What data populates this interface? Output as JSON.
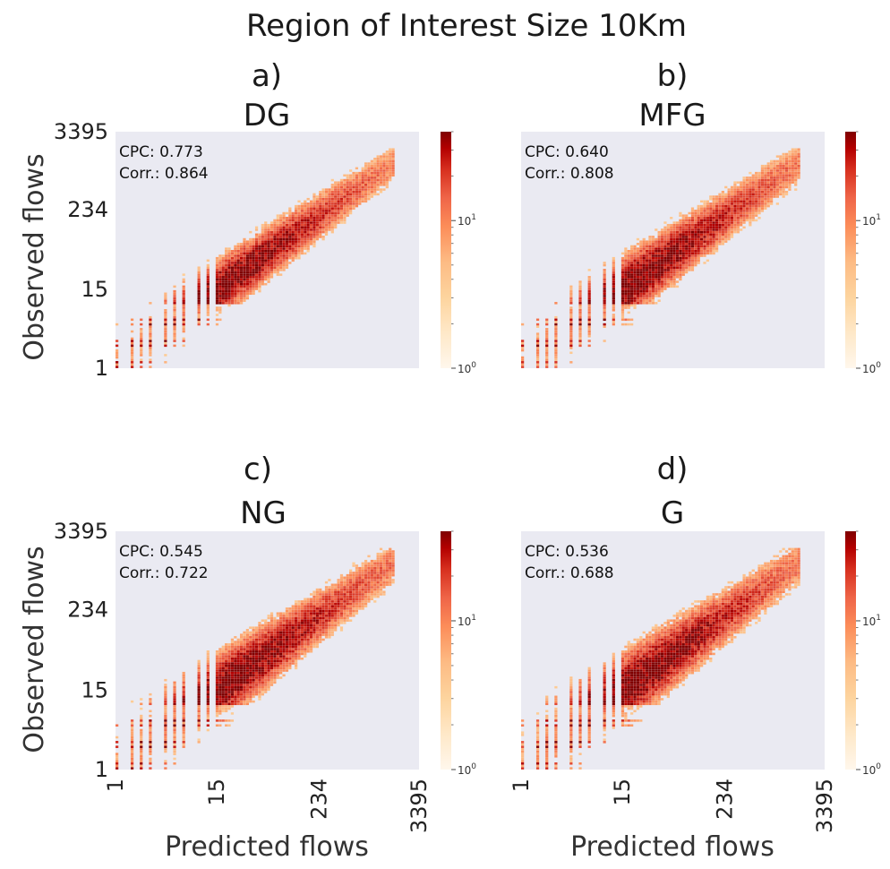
{
  "figure": {
    "title": "Region of Interest Size 10Km"
  },
  "chart_data": [
    {
      "type": "heatmap",
      "panel_label": "a)",
      "title": "DG",
      "xlabel": "",
      "ylabel": "Observed flows",
      "xticks": [],
      "yticks": [
        "1",
        "15",
        "234",
        "3395"
      ],
      "axis_range": [
        1,
        3395
      ],
      "log_scale": true,
      "grid": false,
      "stats": {
        "cpc": "CPC: 0.773",
        "corr": "Corr.: 0.864"
      },
      "colorbar": {
        "colormap": "OrRd",
        "ticks": [
          "10^0",
          "10^1"
        ],
        "range": [
          1,
          40
        ]
      },
      "spread": 0.55
    },
    {
      "type": "heatmap",
      "panel_label": "b)",
      "title": "MFG",
      "xlabel": "",
      "ylabel": "",
      "xticks": [],
      "yticks": [],
      "axis_range": [
        1,
        3395
      ],
      "log_scale": true,
      "grid": false,
      "stats": {
        "cpc": "CPC: 0.640",
        "corr": "Corr.: 0.808"
      },
      "colorbar": {
        "colormap": "OrRd",
        "ticks": [
          "10^0",
          "10^1"
        ],
        "range": [
          1,
          40
        ]
      },
      "spread": 0.8
    },
    {
      "type": "heatmap",
      "panel_label": "c)",
      "title": "NG",
      "xlabel": "Predicted flows",
      "ylabel": "Observed flows",
      "xticks": [
        "1",
        "15",
        "234",
        "3395"
      ],
      "yticks": [
        "1",
        "15",
        "234",
        "3395"
      ],
      "axis_range": [
        1,
        3395
      ],
      "log_scale": true,
      "grid": false,
      "stats": {
        "cpc": "CPC: 0.545",
        "corr": "Corr.: 0.722"
      },
      "colorbar": {
        "colormap": "OrRd",
        "ticks": [
          "10^0",
          "10^1"
        ],
        "range": [
          1,
          40
        ]
      },
      "spread": 1.0
    },
    {
      "type": "heatmap",
      "panel_label": "d)",
      "title": "G",
      "xlabel": "Predicted flows",
      "ylabel": "",
      "xticks": [
        "1",
        "15",
        "234",
        "3395"
      ],
      "yticks": [],
      "axis_range": [
        1,
        3395
      ],
      "log_scale": true,
      "grid": false,
      "stats": {
        "cpc": "CPC: 0.536",
        "corr": "Corr.: 0.688"
      },
      "colorbar": {
        "colormap": "OrRd",
        "ticks": [
          "10^0",
          "10^1"
        ],
        "range": [
          1,
          40
        ]
      },
      "spread": 1.1
    }
  ],
  "colors": {
    "plot_background": "#eaeaf2",
    "cmap_low": "#fff7ec",
    "cmap_high": "#7f0000"
  }
}
